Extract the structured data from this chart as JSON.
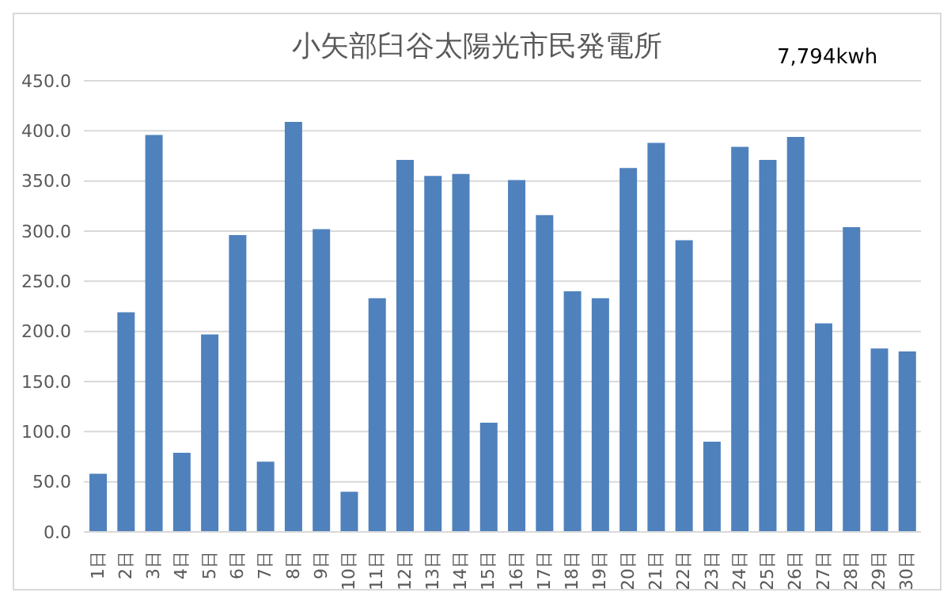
{
  "chart_data": {
    "type": "bar",
    "title": "小矢部臼谷太陽光市民発電所",
    "annotations": [
      "7,794kwh"
    ],
    "categories": [
      "1日",
      "2日",
      "3日",
      "4日",
      "5日",
      "6日",
      "7日",
      "8日",
      "9日",
      "10日",
      "11日",
      "12日",
      "13日",
      "14日",
      "15日",
      "16日",
      "17日",
      "18日",
      "19日",
      "20日",
      "21日",
      "22日",
      "23日",
      "24日",
      "25日",
      "26日",
      "27日",
      "28日",
      "29日",
      "30日"
    ],
    "values": [
      58,
      219,
      396,
      79,
      197,
      296,
      70,
      409,
      302,
      40,
      233,
      371,
      355,
      357,
      109,
      351,
      316,
      240,
      233,
      363,
      388,
      291,
      90,
      384,
      371,
      394,
      208,
      304,
      183,
      180
    ],
    "color": "#4f81bd",
    "ylim": [
      0,
      450
    ],
    "yticks": [
      {
        "value": 0,
        "label": "0.0"
      },
      {
        "value": 50,
        "label": "50.0"
      },
      {
        "value": 100,
        "label": "100.0"
      },
      {
        "value": 150,
        "label": "150.0"
      },
      {
        "value": 200,
        "label": "200.0"
      },
      {
        "value": 250,
        "label": "250.0"
      },
      {
        "value": 300,
        "label": "300.0"
      },
      {
        "value": 350,
        "label": "350.0"
      },
      {
        "value": 400,
        "label": "400.0"
      },
      {
        "value": 450,
        "label": "450.0"
      }
    ],
    "grid": "y"
  }
}
